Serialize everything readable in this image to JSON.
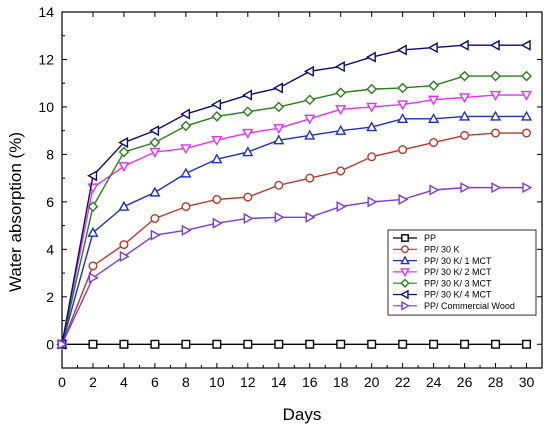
{
  "chart_data": {
    "type": "line",
    "xlabel": "Days",
    "ylabel": "Water absorption (%)",
    "xlim": [
      0,
      31
    ],
    "ylim": [
      -1,
      14
    ],
    "xticks": [
      0,
      2,
      4,
      6,
      8,
      10,
      12,
      14,
      16,
      18,
      20,
      22,
      24,
      26,
      28,
      30
    ],
    "yticks": [
      0,
      2,
      4,
      6,
      8,
      10,
      12,
      14
    ],
    "x": [
      0,
      2,
      4,
      6,
      8,
      10,
      12,
      14,
      16,
      18,
      20,
      22,
      24,
      26,
      28,
      30
    ],
    "legend_position": "lower-right",
    "grid": false,
    "series": [
      {
        "name": "PP",
        "color": "#000000",
        "marker": "square",
        "values": [
          0,
          0,
          0,
          0,
          0,
          0,
          0,
          0,
          0,
          0,
          0,
          0,
          0,
          0,
          0,
          0
        ]
      },
      {
        "name": "PP/ 30 K",
        "color": "#b5382d",
        "marker": "circle",
        "values": [
          0,
          3.3,
          4.2,
          5.3,
          5.8,
          6.1,
          6.2,
          6.7,
          7.0,
          7.3,
          7.9,
          8.2,
          8.5,
          8.8,
          8.9,
          8.9
        ]
      },
      {
        "name": "PP/ 30 K/ 1 MCT",
        "color": "#1f2fc8",
        "marker": "triangle-up",
        "values": [
          0,
          4.7,
          5.8,
          6.4,
          7.2,
          7.8,
          8.1,
          8.6,
          8.8,
          9.0,
          9.15,
          9.5,
          9.5,
          9.6,
          9.6,
          9.6
        ]
      },
      {
        "name": "PP/ 30 K/ 2 MCT",
        "color": "#dd33ee",
        "marker": "triangle-down",
        "values": [
          0,
          6.6,
          7.5,
          8.1,
          8.25,
          8.6,
          8.9,
          9.1,
          9.5,
          9.9,
          10.0,
          10.1,
          10.3,
          10.4,
          10.5,
          10.5
        ]
      },
      {
        "name": "PP/ 30 K/ 3 MCT",
        "color": "#2a7d1a",
        "marker": "diamond",
        "values": [
          0,
          5.8,
          8.1,
          8.5,
          9.2,
          9.6,
          9.8,
          10.0,
          10.3,
          10.6,
          10.75,
          10.8,
          10.9,
          11.3,
          11.3,
          11.3
        ]
      },
      {
        "name": "PP/ 30 K/ 4 MCT",
        "color": "#0c0c6e",
        "marker": "triangle-left",
        "values": [
          0,
          7.1,
          8.5,
          9.0,
          9.7,
          10.1,
          10.5,
          10.8,
          11.5,
          11.7,
          12.1,
          12.4,
          12.5,
          12.6,
          12.6,
          12.6
        ]
      },
      {
        "name": "PP/ Commercial Wood",
        "color": "#7d3ad6",
        "marker": "triangle-right",
        "values": [
          0,
          2.8,
          3.7,
          4.6,
          4.8,
          5.1,
          5.3,
          5.35,
          5.35,
          5.8,
          6.0,
          6.1,
          6.5,
          6.6,
          6.6,
          6.6
        ]
      }
    ]
  }
}
